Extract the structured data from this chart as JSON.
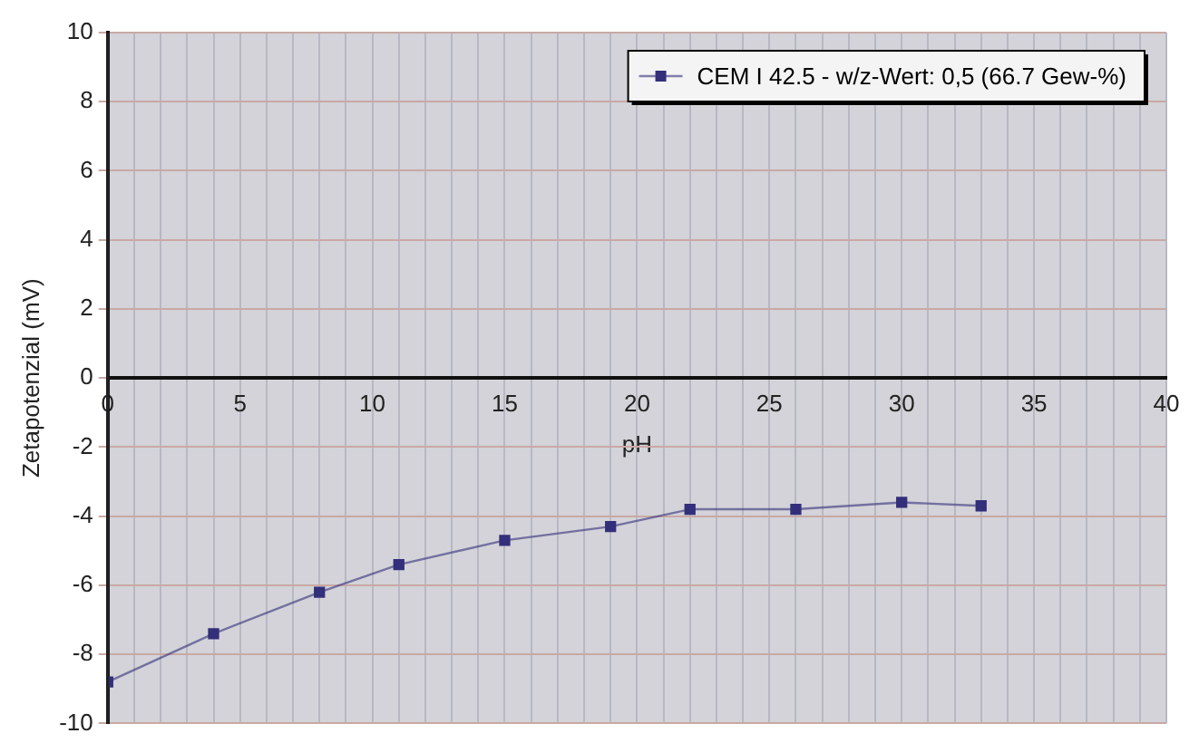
{
  "chart_data": {
    "type": "line",
    "xlabel": "pH",
    "ylabel": "Zetapotenzial (mV)",
    "xlim": [
      0,
      40
    ],
    "xticks": [
      0,
      {
        "value": 1,
        "label": null
      },
      {
        "value": 2,
        "label": null
      },
      {
        "value": 3,
        "label": null
      },
      {
        "value": 4,
        "label": null
      },
      5,
      {
        "value": 6,
        "label": null
      },
      {
        "value": 7,
        "label": null
      },
      {
        "value": 8,
        "label": null
      },
      {
        "value": 9,
        "label": null
      },
      10,
      {
        "value": 11,
        "label": null
      },
      {
        "value": 12,
        "label": null
      },
      {
        "value": 13,
        "label": null
      },
      {
        "value": 14,
        "label": null
      },
      15,
      {
        "value": 16,
        "label": null
      },
      {
        "value": 17,
        "label": null
      },
      {
        "value": 18,
        "label": null
      },
      {
        "value": 19,
        "label": null
      },
      20,
      {
        "value": 21,
        "label": null
      },
      {
        "value": 22,
        "label": null
      },
      {
        "value": 23,
        "label": null
      },
      {
        "value": 24,
        "label": null
      },
      25,
      {
        "value": 26,
        "label": null
      },
      {
        "value": 27,
        "label": null
      },
      {
        "value": 28,
        "label": null
      },
      {
        "value": 29,
        "label": null
      },
      30,
      {
        "value": 31,
        "label": null
      },
      {
        "value": 32,
        "label": null
      },
      {
        "value": 33,
        "label": null
      },
      {
        "value": 34,
        "label": null
      },
      35,
      {
        "value": 36,
        "label": null
      },
      {
        "value": 37,
        "label": null
      },
      {
        "value": 38,
        "label": null
      },
      {
        "value": 39,
        "label": null
      },
      40
    ],
    "ylim": [
      -10,
      10
    ],
    "yticks": [
      -10,
      -8,
      -6,
      -4,
      -2,
      0,
      2,
      4,
      6,
      8,
      10
    ],
    "grid": true,
    "legend": "top right",
    "marker": "square",
    "line_style": "solid",
    "x": [
      0,
      4,
      8,
      11,
      15,
      19,
      22,
      26,
      30,
      33
    ],
    "series": [
      {
        "name": "CEM I 42.5 - w/z-Wert: 0,5 (66.7 Gew-%)",
        "color": "#332f7a",
        "values": [
          -8.8,
          -7.4,
          -6.2,
          -5.4,
          -4.7,
          -4.3,
          -3.8,
          -3.8,
          -3.6,
          -3.7
        ]
      }
    ]
  }
}
